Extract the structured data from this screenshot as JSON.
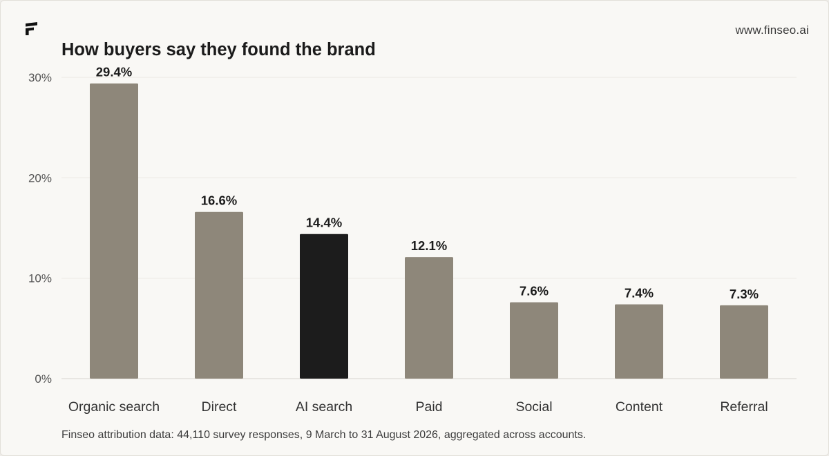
{
  "brand": {
    "site": "www.finseo.ai",
    "logo_icon": "finseo-logo-icon"
  },
  "caption": "Finseo attribution data: 44,110 survey responses, 9 March to 31 August 2026, aggregated across accounts.",
  "colors": {
    "bar": "#8e877a",
    "highlight": "#1c1c1c",
    "grid": "#ebe8e3",
    "axis": "#d6d3ce",
    "text": "#1b1b1b",
    "tick": "#555555"
  },
  "chart_data": {
    "type": "bar",
    "title": "How buyers say they found the brand",
    "xlabel": "",
    "ylabel": "",
    "categories": [
      "Organic search",
      "Direct",
      "AI search",
      "Paid",
      "Social",
      "Content",
      "Referral"
    ],
    "values": [
      29.4,
      16.6,
      14.4,
      12.1,
      7.6,
      7.4,
      7.3
    ],
    "value_labels": [
      "29.4%",
      "16.6%",
      "14.4%",
      "12.1%",
      "7.6%",
      "7.4%",
      "7.3%"
    ],
    "highlight_category": "AI search",
    "ylim": [
      0,
      30
    ],
    "yticks": [
      0,
      10,
      20,
      30
    ],
    "ytick_labels": [
      "0%",
      "10%",
      "20%",
      "30%"
    ],
    "grid": true,
    "legend": "none"
  }
}
